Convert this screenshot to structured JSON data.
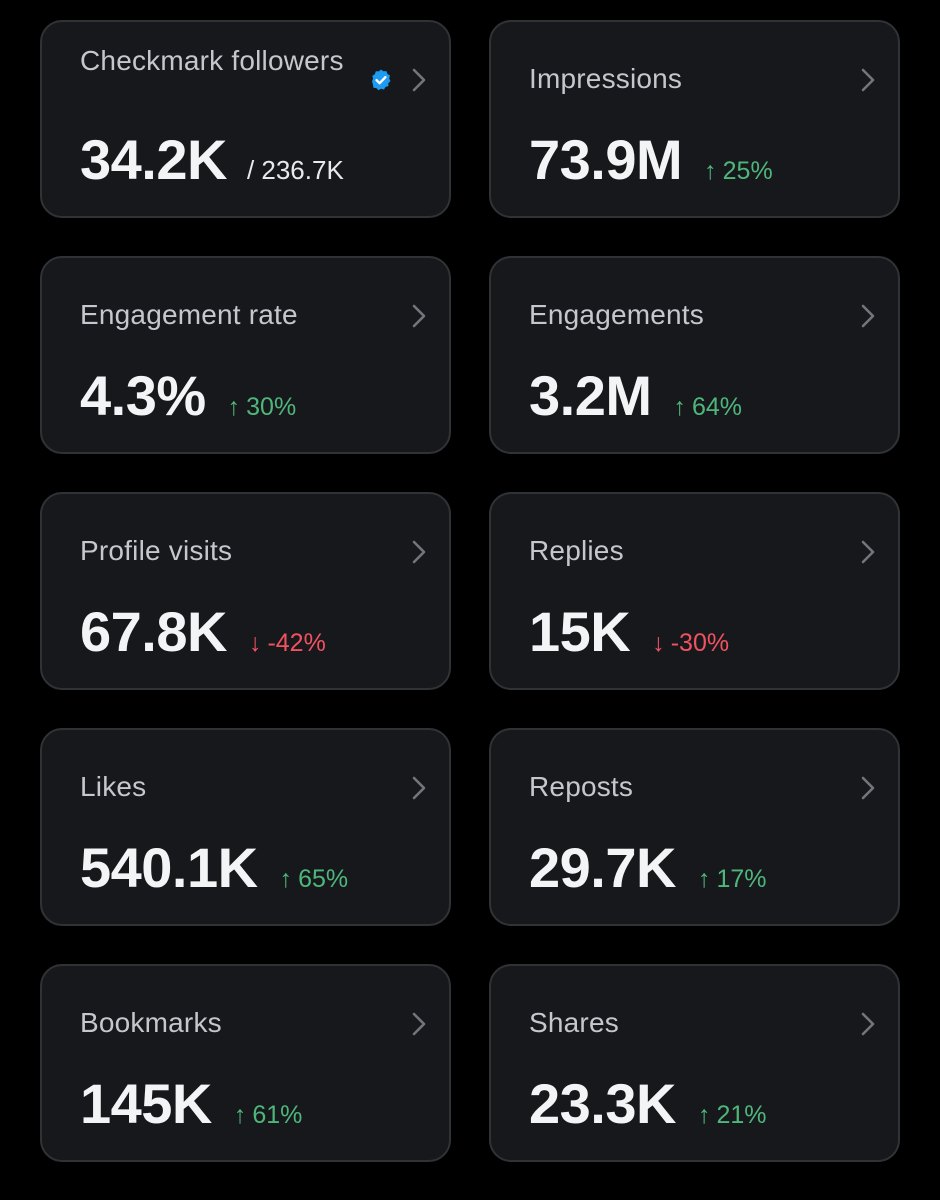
{
  "colors": {
    "background": "#000000",
    "card_background": "#16181c",
    "card_border": "#2f3336",
    "positive": "#4fb67b",
    "negative": "#f0525f",
    "verified_badge": "#1d9bf0"
  },
  "icons": {
    "chevron": "chevron-right-icon",
    "verified": "verified-badge-icon",
    "up": "arrow-up-icon",
    "down": "arrow-down-icon"
  },
  "cards": [
    {
      "id": "checkmark-followers",
      "title": "Checkmark followers",
      "value": "34.2K",
      "total": "/ 236.7K",
      "verified": true
    },
    {
      "id": "impressions",
      "title": "Impressions",
      "value": "73.9M",
      "change": {
        "direction": "up",
        "arrow": "↑",
        "text": "25%"
      }
    },
    {
      "id": "engagement-rate",
      "title": "Engagement rate",
      "value": "4.3%",
      "change": {
        "direction": "up",
        "arrow": "↑",
        "text": "30%"
      }
    },
    {
      "id": "engagements",
      "title": "Engagements",
      "value": "3.2M",
      "change": {
        "direction": "up",
        "arrow": "↑",
        "text": "64%"
      }
    },
    {
      "id": "profile-visits",
      "title": "Profile visits",
      "value": "67.8K",
      "change": {
        "direction": "down",
        "arrow": "↓",
        "text": "-42%"
      }
    },
    {
      "id": "replies",
      "title": "Replies",
      "value": "15K",
      "change": {
        "direction": "down",
        "arrow": "↓",
        "text": "-30%"
      }
    },
    {
      "id": "likes",
      "title": "Likes",
      "value": "540.1K",
      "change": {
        "direction": "up",
        "arrow": "↑",
        "text": "65%"
      }
    },
    {
      "id": "reposts",
      "title": "Reposts",
      "value": "29.7K",
      "change": {
        "direction": "up",
        "arrow": "↑",
        "text": "17%"
      }
    },
    {
      "id": "bookmarks",
      "title": "Bookmarks",
      "value": "145K",
      "change": {
        "direction": "up",
        "arrow": "↑",
        "text": "61%"
      }
    },
    {
      "id": "shares",
      "title": "Shares",
      "value": "23.3K",
      "change": {
        "direction": "up",
        "arrow": "↑",
        "text": "21%"
      }
    }
  ]
}
